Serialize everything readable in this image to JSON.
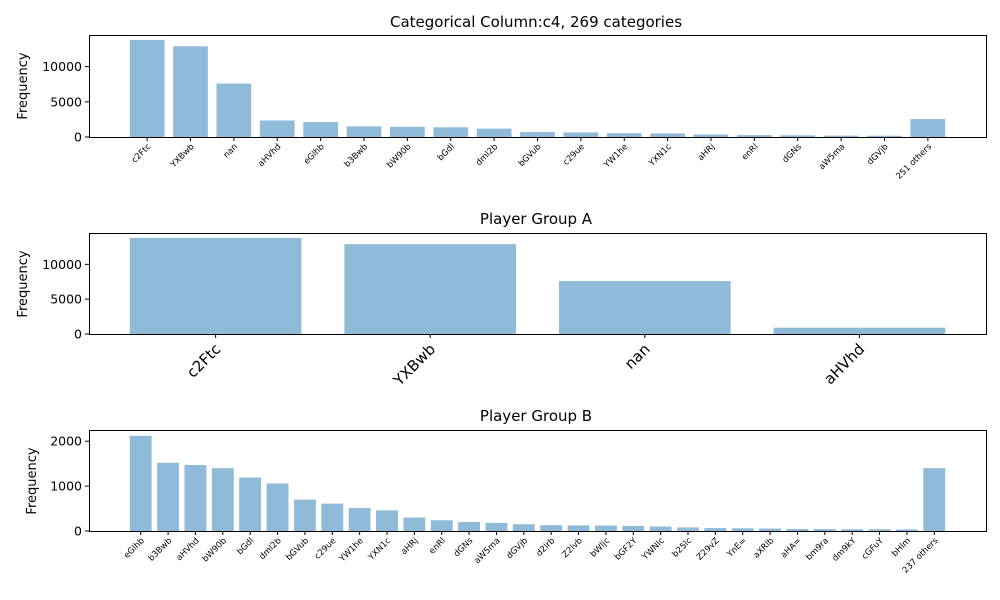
{
  "chart_data": [
    {
      "type": "bar",
      "title": "Categorical Column:c4, 269 categories",
      "ylabel": "Frequency",
      "xlabel": "",
      "ylim": [
        0,
        14500
      ],
      "yticks": [
        0,
        5000,
        10000
      ],
      "categories": [
        "c2Ftc",
        "YXBwb",
        "nan",
        "aHVhd",
        "eGlhb",
        "b3Bwb",
        "bW90b",
        "bGdl",
        "dml2b",
        "bGVub",
        "c29ue",
        "YW1he",
        "YXN1c",
        "aHRj",
        "enRl",
        "dGNs",
        "aW5ma",
        "dGVjb",
        "251 others"
      ],
      "values": [
        13800,
        12900,
        7600,
        2350,
        2120,
        1520,
        1450,
        1380,
        1190,
        700,
        650,
        540,
        510,
        360,
        270,
        240,
        200,
        180,
        2550
      ],
      "tick_label_rotation": 45,
      "tick_label_size": "small"
    },
    {
      "type": "bar",
      "title": "Player Group A",
      "ylabel": "Frequency",
      "xlabel": "",
      "ylim": [
        0,
        14500
      ],
      "yticks": [
        0,
        5000,
        10000
      ],
      "categories": [
        "c2Ftc",
        "YXBwb",
        "nan",
        "aHVhd"
      ],
      "values": [
        13800,
        12900,
        7600,
        900
      ],
      "tick_label_rotation": 45,
      "tick_label_size": "large"
    },
    {
      "type": "bar",
      "title": "Player Group B",
      "ylabel": "Frequency",
      "xlabel": "",
      "ylim": [
        0,
        2250
      ],
      "yticks": [
        0,
        1000,
        2000
      ],
      "categories": [
        "eGlhb",
        "b3Bwb",
        "aHVhd",
        "bW90b",
        "bGdl",
        "dml2b",
        "bGVub",
        "c29ue",
        "YW1he",
        "YXN1c",
        "aHRj",
        "enRl",
        "dGNs",
        "aW5ma",
        "dGVjb",
        "d2lrb",
        "Z2lvb",
        "bWljc",
        "bGF2Y",
        "YWNlc",
        "b25lc",
        "Z29vZ",
        "YnE=",
        "aXRlb",
        "aHA=",
        "bm9ra",
        "dm9kY",
        "cGFuY",
        "bHlm",
        "237 others"
      ],
      "values": [
        2120,
        1520,
        1470,
        1400,
        1190,
        1060,
        700,
        610,
        510,
        460,
        300,
        240,
        200,
        180,
        150,
        130,
        125,
        120,
        115,
        100,
        80,
        65,
        60,
        55,
        45,
        45,
        40,
        40,
        35,
        1400
      ],
      "tick_label_rotation": 45,
      "tick_label_size": "small"
    }
  ],
  "colors": {
    "bar": "#8fbbd9",
    "axis": "#000000",
    "background": "#ffffff"
  }
}
